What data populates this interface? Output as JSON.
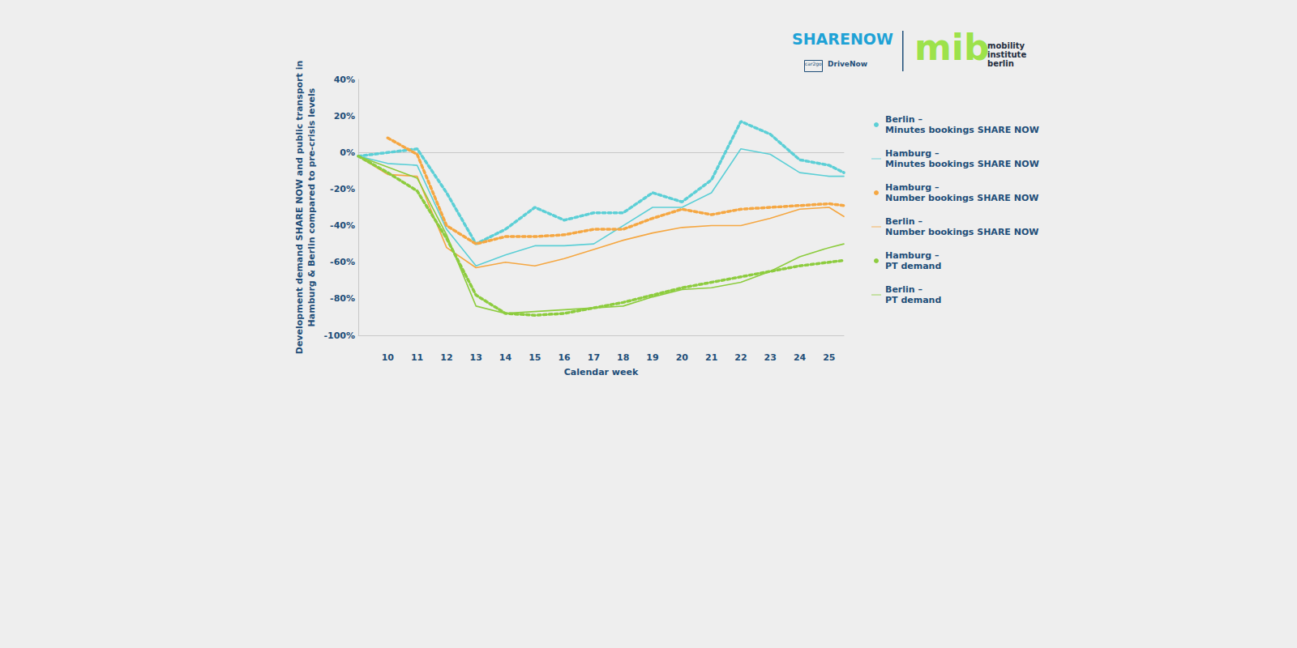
{
  "chart_data": {
    "type": "line",
    "y_label": "Development demand SHARE NOW and public transport in\nHamburg & Berlin compared to pre-crisis levels",
    "x_label": "Calendar week",
    "logos": [
      "SHARENOW",
      "car2go",
      "DriveNow",
      "mib",
      "mobility\ninstitute\nberlin"
    ],
    "x": [
      9,
      10,
      11,
      12,
      13,
      14,
      15,
      16,
      17,
      18,
      19,
      20,
      21,
      22,
      23,
      24,
      25,
      25.5
    ],
    "xlim": [
      9,
      25.5
    ],
    "xticks": [
      10,
      11,
      12,
      13,
      14,
      15,
      16,
      17,
      18,
      19,
      20,
      21,
      22,
      23,
      24,
      25
    ],
    "ylim": [
      -100,
      40
    ],
    "yticks": [
      {
        "value": -100,
        "label": "-100%"
      },
      {
        "value": -80,
        "label": "-80%"
      },
      {
        "value": -60,
        "label": "-60%"
      },
      {
        "value": -40,
        "label": "-40%"
      },
      {
        "value": -20,
        "label": "-20%"
      },
      {
        "value": 0,
        "label": "0%"
      },
      {
        "value": 20,
        "label": "20%"
      },
      {
        "value": 40,
        "label": "40%"
      }
    ],
    "grid": false,
    "legend": "right",
    "series": [
      {
        "name": "Berlin –\nMinutes bookings SHARE NOW",
        "color": "#5ccfd6",
        "line_style": "dotted",
        "values": [
          -2,
          0,
          2,
          -22,
          -50,
          -42,
          -30,
          -37,
          -33,
          -33,
          -22,
          -27,
          -15,
          17,
          10,
          -4,
          -7,
          -11
        ]
      },
      {
        "name": "Hamburg –\nMinutes bookings SHARE NOW",
        "color": "#5ccfd6",
        "line_style": "solid",
        "values": [
          -2,
          -6,
          -7,
          -42,
          -62,
          -56,
          -51,
          -51,
          -50,
          -40,
          -30,
          -30,
          -22,
          2,
          -1,
          -11,
          -13,
          -13
        ]
      },
      {
        "name": "Hamburg –\nNumber bookings SHARE NOW",
        "color": "#f5a742",
        "line_style": "dotted",
        "values": [
          null,
          8,
          -1,
          -40,
          -50,
          -46,
          -46,
          -45,
          -42,
          -42,
          -36,
          -31,
          -34,
          -31,
          -30,
          -29,
          -28,
          -29
        ]
      },
      {
        "name": "Berlin –\nNumber bookings SHARE NOW",
        "color": "#f5a742",
        "line_style": "solid",
        "values": [
          -2,
          -12,
          -13,
          -52,
          -63,
          -60,
          -62,
          -58,
          -53,
          -48,
          -44,
          -41,
          -40,
          -40,
          -36,
          -31,
          -30,
          -35
        ]
      },
      {
        "name": "Hamburg –\nPT demand",
        "color": "#8dcc3f",
        "line_style": "dotted",
        "values": [
          -2,
          -11,
          -21,
          -47,
          -78,
          -88,
          -89,
          -88,
          -85,
          -82,
          -78,
          -74,
          -71,
          -68,
          -65,
          -62,
          -60,
          -59
        ]
      },
      {
        "name": "Berlin –\nPT demand",
        "color": "#8dcc3f",
        "line_style": "solid",
        "values": [
          -2,
          -8,
          -14,
          -45,
          -84,
          -88,
          -87,
          -86,
          -85,
          -84,
          -79,
          -75,
          -74,
          -71,
          -65,
          -57,
          -52,
          -50
        ]
      }
    ]
  }
}
